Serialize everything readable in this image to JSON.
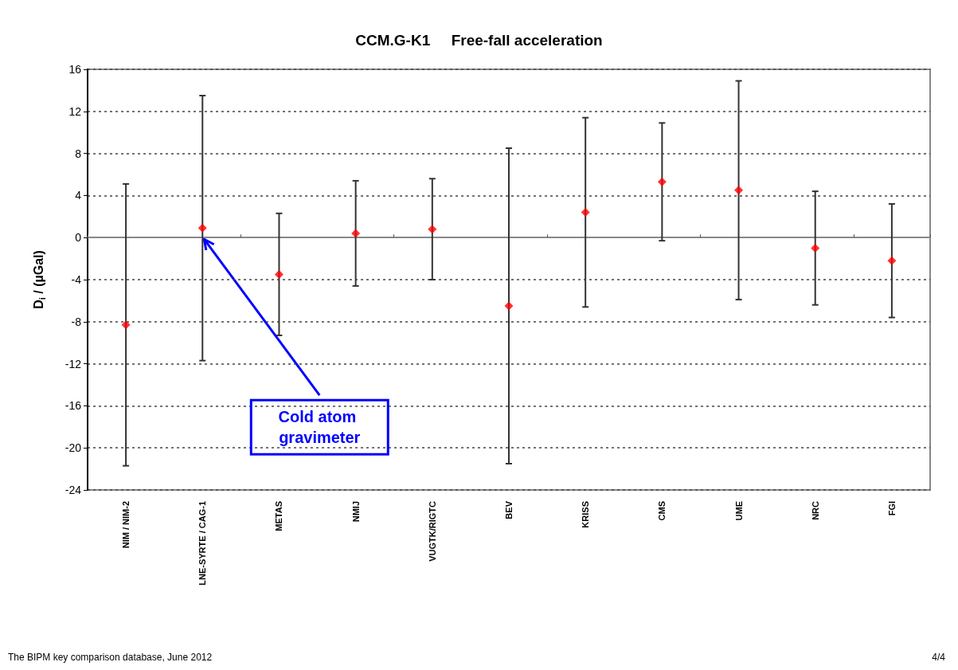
{
  "chart_data": {
    "type": "scatter",
    "title": "CCM.G-K1     Free-fall acceleration",
    "ylabel": "D$_{i}$ / (µGal)",
    "categories": [
      "NIM / NIM-2",
      "LNE-SYRTE / CAG-1",
      "METAS",
      "NMIJ",
      "VUGTK/RIGTC",
      "BEV",
      "KRISS",
      "CMS",
      "UME",
      "NRC",
      "FGI"
    ],
    "values": [
      -8.3,
      0.9,
      -3.5,
      0.4,
      0.8,
      -6.5,
      2.4,
      5.3,
      4.5,
      -1.0,
      -2.2
    ],
    "errors": [
      13.4,
      12.6,
      5.8,
      5.0,
      4.8,
      15.0,
      9.0,
      5.6,
      10.4,
      5.4,
      5.4
    ],
    "color": "#ff0000",
    "marker": "diamond",
    "ylim": [
      -24,
      16
    ],
    "yticks": [
      -24,
      -20,
      -16,
      -12,
      -8,
      -4,
      0,
      4,
      8,
      12,
      16
    ],
    "grid": "y",
    "annotations": [
      {
        "text": "Cold atom gravimeter",
        "x": "LNE-SYRTE / CAG-1",
        "y": 0
      },
      "The BIPM key comparison database, June 2012",
      "4/4"
    ]
  }
}
